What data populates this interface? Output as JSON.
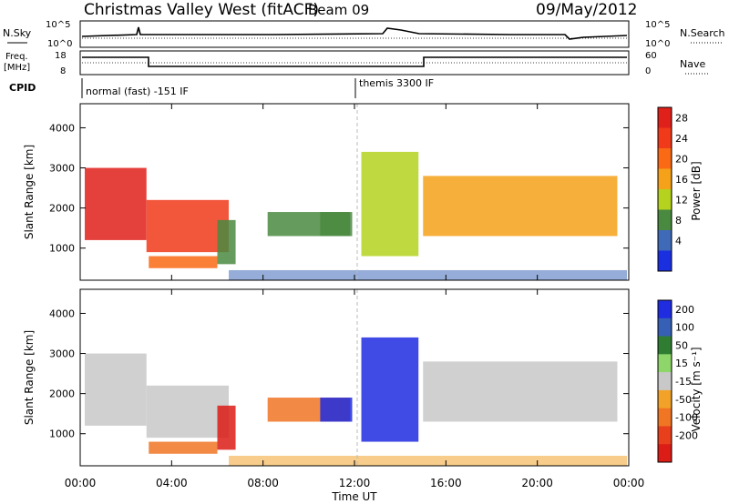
{
  "header": {
    "title": "Christmas Valley West (fitACF)",
    "beam": "Beam 09",
    "date": "09/May/2012"
  },
  "panels": {
    "nsky": {
      "left_label": "N.Sky",
      "right_label": "N.Search",
      "ticks_left": [
        "10^5",
        "10^0"
      ],
      "ticks_right": [
        "10^5",
        "10^0"
      ]
    },
    "freq": {
      "left_label_1": "Freq.",
      "left_label_2": "[MHz]",
      "right_label": "Nave",
      "ticks_left": [
        "18",
        "8"
      ],
      "ticks_right": [
        "60",
        "0"
      ]
    },
    "cpid": {
      "label": "CPID",
      "modes": [
        "normal (fast) -151 IF",
        "themis 3300 IF"
      ]
    }
  },
  "colorbars": {
    "power": {
      "label": "Power [dB]",
      "ticks": [
        "28",
        "24",
        "20",
        "16",
        "12",
        "8",
        "4"
      ],
      "colors": [
        "#e0201a",
        "#f03a1a",
        "#fa6a14",
        "#f6a11a",
        "#b4d21e",
        "#4a8a40",
        "#3e6ab8",
        "#1a2fe0"
      ]
    },
    "velocity": {
      "label": "Velocity [m s⁻¹]",
      "ticks": [
        "200",
        "100",
        "50",
        "15",
        "-15",
        "-50",
        "-100",
        "-200"
      ],
      "colors": [
        "#1f2ce0",
        "#3560b5",
        "#2e7d32",
        "#8ed66a",
        "#c8c8c8",
        "#f2a229",
        "#f07624",
        "#e8401d",
        "#dc1c16"
      ]
    }
  },
  "axes": {
    "ylabel": "Slant Range [km]",
    "yticks": [
      "4000",
      "3000",
      "2000",
      "1000"
    ],
    "xticks": [
      "00:00",
      "04:00",
      "08:00",
      "12:00",
      "16:00",
      "20:00",
      "00:00"
    ],
    "xlabel": "Time UT"
  },
  "chart_data": {
    "type": "heatmap",
    "title": "Christmas Valley West (fitACF)",
    "x_unit": "UT hours",
    "xlim": [
      0,
      24
    ],
    "ylim": [
      200,
      4600
    ],
    "power_range_db": [
      0,
      30
    ],
    "velocity_range": [
      -250,
      250
    ],
    "regions": [
      {
        "t0": 0.2,
        "t1": 2.9,
        "r0": 1200,
        "r1": 3000,
        "power": 29,
        "velocity": -10
      },
      {
        "t0": 2.9,
        "t1": 6.5,
        "r0": 900,
        "r1": 2200,
        "power": 27,
        "velocity": -5
      },
      {
        "t0": 6.0,
        "t1": 6.8,
        "r0": 600,
        "r1": 1700,
        "power": 10,
        "velocity": -220
      },
      {
        "t0": 3.0,
        "t1": 6.0,
        "r0": 500,
        "r1": 800,
        "power": 20,
        "velocity": -80
      },
      {
        "t0": 8.2,
        "t1": 11.8,
        "r0": 1300,
        "r1": 1900,
        "power": 8,
        "velocity": -60
      },
      {
        "t0": 10.5,
        "t1": 11.9,
        "r0": 1300,
        "r1": 1900,
        "power": 10,
        "velocity": 200
      },
      {
        "t0": 12.3,
        "t1": 14.8,
        "r0": 800,
        "r1": 3400,
        "power": 12,
        "velocity": 200
      },
      {
        "t0": 15.0,
        "t1": 23.5,
        "r0": 1300,
        "r1": 2800,
        "power": 18,
        "velocity": -10
      }
    ]
  }
}
